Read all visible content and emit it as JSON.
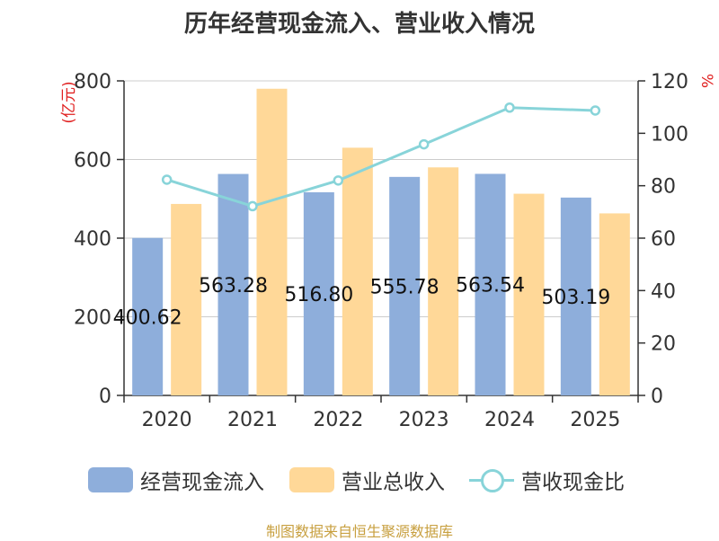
{
  "chart_data": {
    "type": "bar",
    "title": "历年经营现金流入、营业收入情况",
    "categories": [
      "2020",
      "2021",
      "2022",
      "2023",
      "2024",
      "2025"
    ],
    "series": [
      {
        "name": "经营现金流入",
        "type": "bar",
        "axis": "left",
        "color": "#8eaedb",
        "values": [
          400.62,
          563.28,
          516.8,
          555.78,
          563.54,
          503.19
        ],
        "labels": [
          "400.62",
          "563.28",
          "516.80",
          "555.78",
          "563.54",
          "503.19"
        ]
      },
      {
        "name": "营业总收入",
        "type": "bar",
        "axis": "left",
        "color": "#ffd898",
        "values": [
          487,
          780,
          630,
          580,
          513,
          463
        ]
      },
      {
        "name": "营收现金比",
        "type": "line",
        "axis": "right",
        "color": "#88d4d9",
        "values": [
          82.3,
          72.2,
          82.0,
          95.8,
          109.8,
          108.7
        ]
      }
    ],
    "left_axis": {
      "label": "(亿元)",
      "ylim": [
        0,
        800
      ],
      "ticks": [
        0,
        200,
        400,
        600,
        800
      ],
      "label_color": "#e02020"
    },
    "right_axis": {
      "label": "%",
      "ylim": [
        0,
        120
      ],
      "ticks": [
        0,
        20,
        40,
        60,
        80,
        100,
        120
      ],
      "label_color": "#e02020"
    },
    "grid": true,
    "legend_position": "bottom"
  },
  "source": "制图数据来自恒生聚源数据库"
}
